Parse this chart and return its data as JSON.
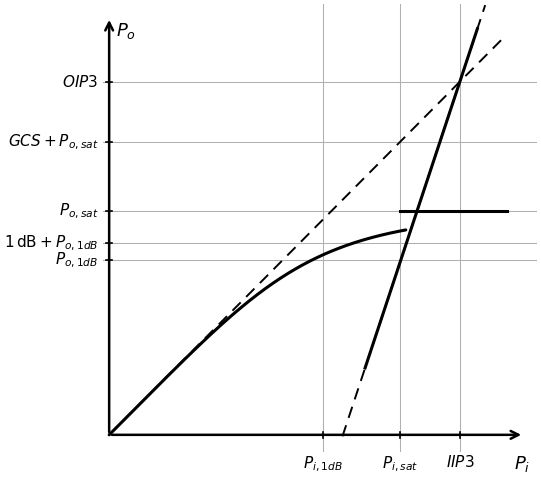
{
  "figsize": [
    5.41,
    4.78
  ],
  "dpi": 100,
  "background_color": "#ffffff",
  "line_color": "#000000",
  "grid_color": "#b0b0b0",
  "x_max": 10.0,
  "y_max": 10.0,
  "Pi_1dB": 5.0,
  "Pi_sat": 6.8,
  "IIP3": 8.2,
  "Po_1dB": 4.05,
  "Po_1dB_plus1": 4.45,
  "Po_sat": 5.2,
  "GCS_Po_sat": 6.8,
  "OIP3": 8.2,
  "small_signal_gain": 1.0,
  "im3_slope": 3.0,
  "ylabel": "$P_o$",
  "xlabel": "$P_i$"
}
